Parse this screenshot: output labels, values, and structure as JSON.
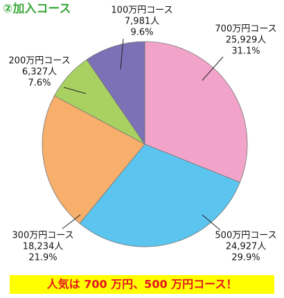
{
  "chart_data": {
    "type": "pie",
    "title": "②加入コース",
    "categories": [
      "700万円コース",
      "500万円コース",
      "300万円コース",
      "200万円コース",
      "100万円コース"
    ],
    "values": [
      31.1,
      29.9,
      21.9,
      7.6,
      9.6
    ],
    "value_labels": [
      "31.1%",
      "29.9%",
      "21.9%",
      "7.6%",
      "9.6%"
    ],
    "counts": [
      25929,
      24927,
      18234,
      6327,
      7981
    ],
    "count_labels": [
      "25,929人",
      "24,927人",
      "18,234人",
      "6,327人",
      "7,981人"
    ],
    "colors": [
      "#f2a3c9",
      "#5bc5ef",
      "#f7af6b",
      "#a9d162",
      "#7c70b6"
    ],
    "annotation": "人気は 700 万円、500 万円コース！"
  }
}
